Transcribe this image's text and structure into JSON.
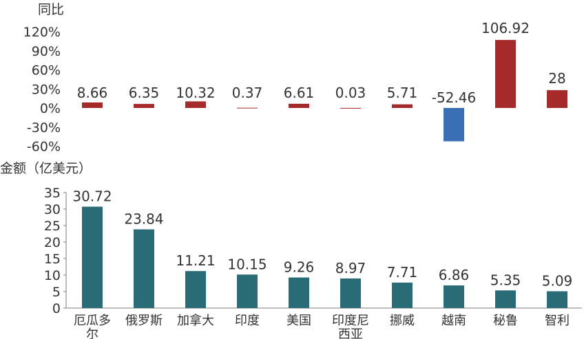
{
  "chart_data": [
    {
      "type": "bar",
      "ylabel": "同比",
      "categories": [
        "厄瓜多尔",
        "俄罗斯",
        "加拿大",
        "印度",
        "美国",
        "印度尼西亚",
        "挪威",
        "越南",
        "秘鲁",
        "智利"
      ],
      "values": [
        8.66,
        6.35,
        10.32,
        0.37,
        6.61,
        0.03,
        5.71,
        -52.46,
        106.92,
        28
      ],
      "value_labels": [
        "8.66",
        "6.35",
        "10.32",
        "0.37",
        "6.61",
        "0.03",
        "5.71",
        "-52.46",
        "106.92",
        "28"
      ],
      "ylim": [
        -60,
        120
      ],
      "yticks": [
        120,
        90,
        60,
        30,
        0,
        -30,
        -60
      ],
      "ytick_labels": [
        "120%",
        "90%",
        "60%",
        "30%",
        "0%",
        "-30%",
        "-60%"
      ],
      "colors": {
        "positive": "#a52a2a",
        "negative": "#3a6fb5"
      },
      "grid": false
    },
    {
      "type": "bar",
      "ylabel": "金额（亿美元）",
      "categories": [
        "厄瓜多尔",
        "俄罗斯",
        "加拿大",
        "印度",
        "美国",
        "印度尼西亚",
        "挪威",
        "越南",
        "秘鲁",
        "智利"
      ],
      "category_lines": [
        [
          "厄瓜多",
          "尔"
        ],
        [
          "俄罗斯"
        ],
        [
          "加拿大"
        ],
        [
          "印度"
        ],
        [
          "美国"
        ],
        [
          "印度尼",
          "西亚"
        ],
        [
          "挪威"
        ],
        [
          "越南"
        ],
        [
          "秘鲁"
        ],
        [
          "智利"
        ]
      ],
      "values": [
        30.72,
        23.84,
        11.21,
        10.15,
        9.26,
        8.97,
        7.71,
        6.86,
        5.35,
        5.09
      ],
      "value_labels": [
        "30.72",
        "23.84",
        "11.21",
        "10.15",
        "9.26",
        "8.97",
        "7.71",
        "6.86",
        "5.35",
        "5.09"
      ],
      "ylim": [
        0,
        35
      ],
      "yticks": [
        35,
        30,
        25,
        20,
        15,
        10,
        5,
        0
      ],
      "ytick_labels": [
        "35",
        "30",
        "25",
        "20",
        "15",
        "10",
        "5",
        "0"
      ],
      "colors": {
        "bar": "#2a6b78",
        "axis": "#7a7a7a"
      },
      "grid": false
    }
  ]
}
